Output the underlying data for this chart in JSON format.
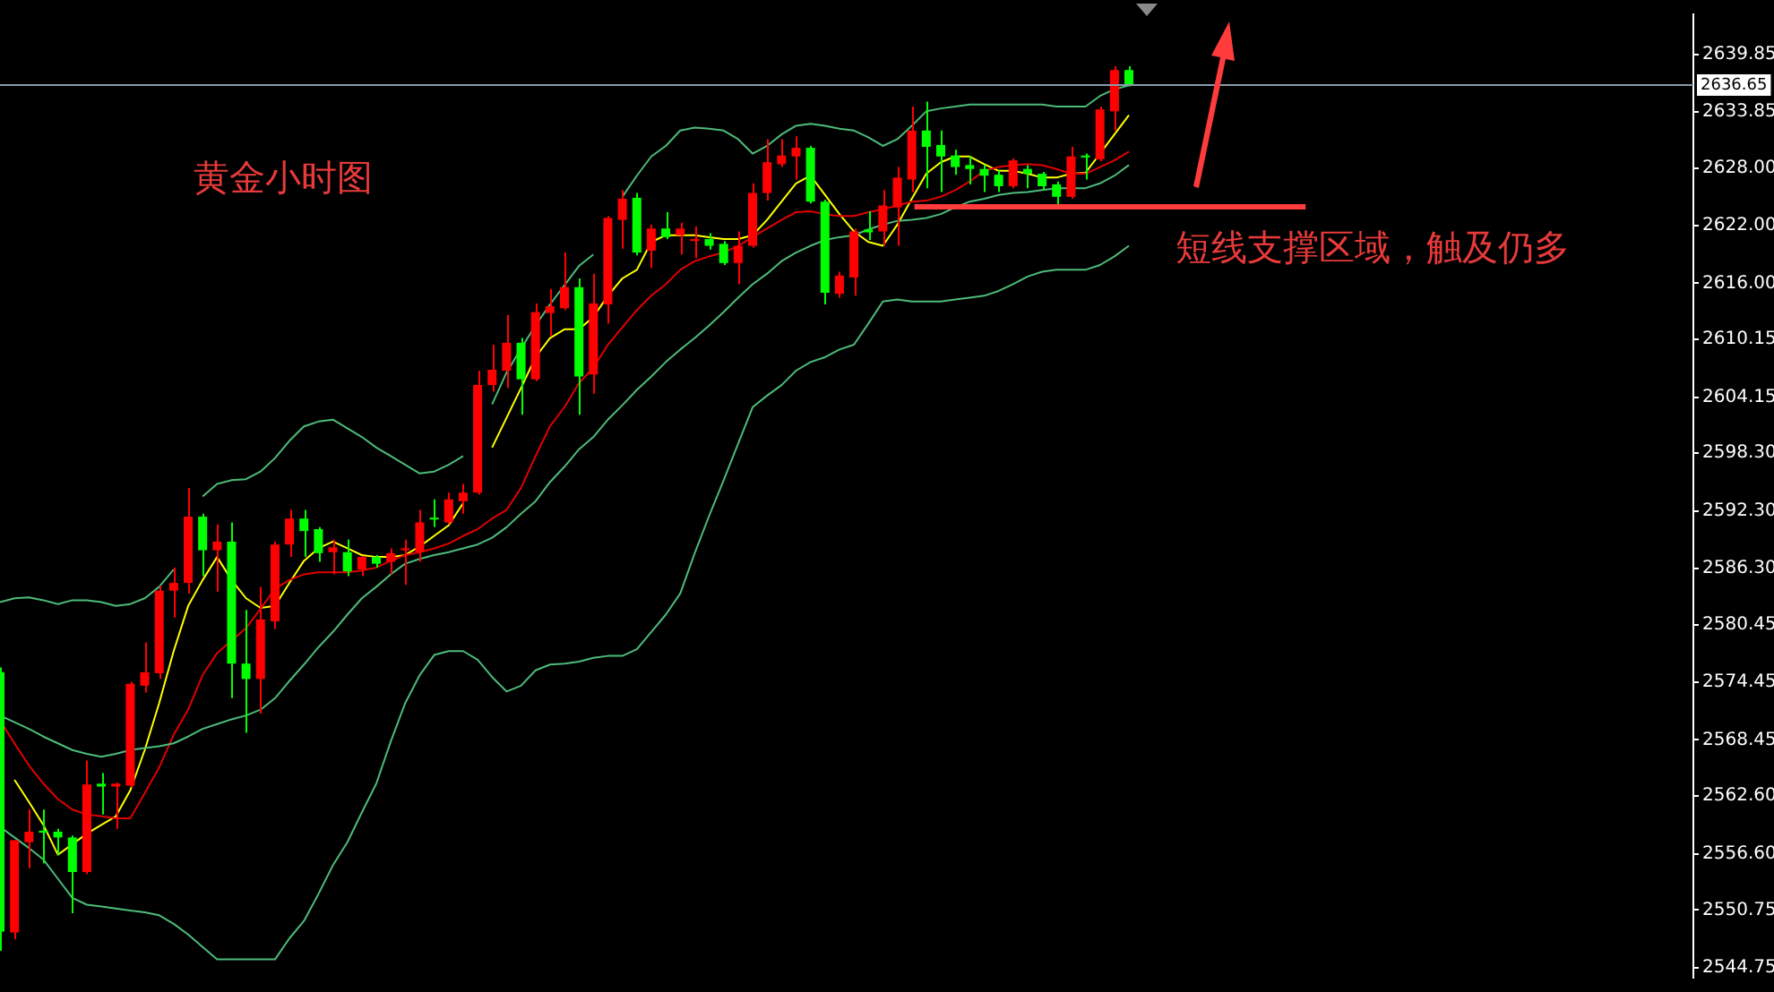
{
  "chart_data": {
    "type": "candlestick",
    "title": "黄金小时图",
    "categories": [
      null,
      null,
      null,
      null,
      null,
      null,
      null,
      null,
      null,
      null,
      null,
      null,
      null,
      null,
      null,
      null,
      null,
      null,
      null,
      null,
      null,
      null,
      null,
      null,
      null,
      null,
      null,
      null,
      null,
      null,
      null,
      null,
      null,
      null,
      null,
      null,
      null,
      null,
      null,
      null,
      null,
      null,
      null,
      null,
      null,
      null,
      null,
      null,
      null,
      null,
      null,
      null,
      null,
      null,
      null,
      null,
      null,
      null,
      null,
      null,
      null,
      null,
      null,
      null,
      null,
      null,
      null,
      null,
      null,
      null,
      null,
      null,
      null,
      null,
      null,
      null,
      null,
      null,
      null,
      null,
      null,
      null,
      null,
      null,
      null,
      null,
      null,
      null,
      null,
      null,
      null,
      null,
      null,
      null,
      null,
      null,
      null,
      null,
      null,
      null,
      null,
      null,
      null,
      null,
      null,
      null,
      null,
      null,
      null,
      null,
      null,
      null,
      null,
      null,
      null,
      null,
      null,
      null
    ],
    "ohlc": [
      [
        2575.5,
        2576.0,
        2546.5,
        2548.5
      ],
      [
        2548.4,
        2558.0,
        2547.7,
        2558.0
      ],
      [
        2557.8,
        2561.2,
        2555.1,
        2558.9
      ],
      [
        2559.0,
        2561.2,
        2555.6,
        2558.8
      ],
      [
        2558.9,
        2559.2,
        2556.5,
        2558.3
      ],
      [
        2558.3,
        2558.5,
        2550.4,
        2554.7
      ],
      [
        2554.7,
        2566.3,
        2554.5,
        2563.8
      ],
      [
        2563.9,
        2565.0,
        2560.7,
        2563.6
      ],
      [
        2563.6,
        2564.0,
        2559.2,
        2563.9
      ],
      [
        2563.7,
        2574.5,
        2563.5,
        2574.3
      ],
      [
        2574.1,
        2578.6,
        2573.4,
        2575.5
      ],
      [
        2575.4,
        2584.5,
        2574.8,
        2584.0
      ],
      [
        2584.0,
        2586.4,
        2581.2,
        2584.8
      ],
      [
        2584.8,
        2594.7,
        2583.7,
        2591.7
      ],
      [
        2591.7,
        2592.0,
        2585.5,
        2588.2
      ],
      [
        2588.2,
        2590.9,
        2583.9,
        2589.1
      ],
      [
        2589.1,
        2591.1,
        2572.8,
        2576.4
      ],
      [
        2576.4,
        2582.0,
        2569.2,
        2574.8
      ],
      [
        2574.8,
        2584.4,
        2571.2,
        2581.0
      ],
      [
        2580.8,
        2589.1,
        2580.0,
        2588.8
      ],
      [
        2588.8,
        2592.4,
        2587.5,
        2591.5
      ],
      [
        2591.5,
        2592.4,
        2587.5,
        2590.2
      ],
      [
        2590.4,
        2590.6,
        2587.0,
        2587.9
      ],
      [
        2588.0,
        2589.3,
        2585.7,
        2588.5
      ],
      [
        2588.0,
        2589.3,
        2585.5,
        2586.0
      ],
      [
        2586.2,
        2587.6,
        2585.5,
        2587.5
      ],
      [
        2587.5,
        2587.7,
        2586.4,
        2586.8
      ],
      [
        2587.0,
        2588.4,
        2585.7,
        2587.9
      ],
      [
        2588.2,
        2589.3,
        2584.6,
        2588.4
      ],
      [
        2588.0,
        2592.4,
        2587.0,
        2591.1
      ],
      [
        2591.6,
        2593.5,
        2590.6,
        2591.4
      ],
      [
        2591.1,
        2594.2,
        2590.9,
        2593.5
      ],
      [
        2593.3,
        2595.1,
        2592.0,
        2594.2
      ],
      [
        2594.2,
        2606.9,
        2594.0,
        2605.4
      ],
      [
        2605.4,
        2609.6,
        2604.7,
        2607.0
      ],
      [
        2606.9,
        2612.7,
        2605.1,
        2609.8
      ],
      [
        2609.8,
        2610.3,
        2602.3,
        2606.0
      ],
      [
        2606.0,
        2613.9,
        2605.8,
        2613.0
      ],
      [
        2612.9,
        2615.4,
        2610.5,
        2613.6
      ],
      [
        2613.4,
        2619.2,
        2613.2,
        2615.6
      ],
      [
        2615.6,
        2616.5,
        2602.3,
        2606.3
      ],
      [
        2606.5,
        2617.0,
        2604.5,
        2613.9
      ],
      [
        2613.8,
        2623.0,
        2611.8,
        2622.8
      ],
      [
        2622.6,
        2625.7,
        2619.6,
        2624.8
      ],
      [
        2624.9,
        2625.4,
        2618.9,
        2619.2
      ],
      [
        2619.4,
        2622.1,
        2617.6,
        2621.7
      ],
      [
        2621.7,
        2623.4,
        2620.6,
        2620.8
      ],
      [
        2621.0,
        2622.3,
        2619.0,
        2621.7
      ],
      [
        2620.4,
        2621.9,
        2618.6,
        2620.6
      ],
      [
        2620.6,
        2621.2,
        2619.5,
        2619.9
      ],
      [
        2620.1,
        2620.4,
        2617.9,
        2618.1
      ],
      [
        2618.1,
        2621.4,
        2615.9,
        2619.9
      ],
      [
        2619.9,
        2626.4,
        2619.7,
        2625.4
      ],
      [
        2625.4,
        2631.0,
        2624.6,
        2628.6
      ],
      [
        2628.4,
        2631.0,
        2628.1,
        2629.3
      ],
      [
        2629.2,
        2631.3,
        2626.8,
        2630.1
      ],
      [
        2630.1,
        2630.3,
        2624.3,
        2624.5
      ],
      [
        2624.5,
        2624.7,
        2613.8,
        2615.0
      ],
      [
        2614.9,
        2617.2,
        2614.5,
        2616.8
      ],
      [
        2616.6,
        2621.7,
        2614.7,
        2621.4
      ],
      [
        2621.6,
        2623.5,
        2620.5,
        2621.3
      ],
      [
        2621.4,
        2625.7,
        2619.9,
        2624.1
      ],
      [
        2623.9,
        2628.1,
        2619.9,
        2627.0
      ],
      [
        2626.8,
        2634.4,
        2625.5,
        2631.9
      ],
      [
        2631.9,
        2634.9,
        2625.9,
        2630.2
      ],
      [
        2630.4,
        2631.9,
        2625.5,
        2629.2
      ],
      [
        2629.3,
        2629.9,
        2627.3,
        2628.1
      ],
      [
        2628.3,
        2629.2,
        2626.3,
        2627.9
      ],
      [
        2627.9,
        2628.3,
        2625.5,
        2627.2
      ],
      [
        2627.3,
        2627.7,
        2625.5,
        2626.1
      ],
      [
        2626.1,
        2629.0,
        2625.9,
        2628.8
      ],
      [
        2627.9,
        2628.3,
        2625.9,
        2627.4
      ],
      [
        2627.4,
        2627.6,
        2625.7,
        2626.1
      ],
      [
        2626.3,
        2626.6,
        2624.1,
        2625.0
      ],
      [
        2625.0,
        2630.2,
        2624.8,
        2629.2
      ],
      [
        2629.3,
        2629.5,
        2626.8,
        2629.1
      ],
      [
        2628.9,
        2634.4,
        2628.7,
        2634.1
      ],
      [
        2633.9,
        2638.6,
        2631.9,
        2638.2
      ],
      [
        2638.2,
        2638.6,
        2636.5,
        2636.6
      ],
      null,
      null,
      null,
      null,
      null,
      null,
      null,
      null,
      null,
      null,
      null,
      null,
      null,
      null,
      null,
      null,
      null,
      null,
      null,
      null,
      null,
      null,
      null,
      null,
      null,
      null,
      null,
      null,
      null,
      null,
      null,
      null,
      null,
      null,
      null,
      null,
      null,
      null,
      null
    ],
    "colors": [
      "#00ff00",
      "#ff0000",
      "#ff0000",
      "#00ff00",
      "#00ff00",
      "#00ff00",
      "#ff0000",
      "#00ff00",
      "#ff0000",
      "#ff0000",
      "#ff0000",
      "#ff0000",
      "#ff0000",
      "#ff0000",
      "#00ff00",
      "#ff0000",
      "#00ff00",
      "#00ff00",
      "#ff0000",
      "#ff0000",
      "#ff0000",
      "#00ff00",
      "#00ff00",
      "#ff0000",
      "#00ff00",
      "#ff0000",
      "#00ff00",
      "#ff0000",
      "#ff0000",
      "#ff0000",
      "#00ff00",
      "#ff0000",
      "#ff0000",
      "#ff0000",
      "#ff0000",
      "#ff0000",
      "#00ff00",
      "#ff0000",
      "#ff0000",
      "#ff0000",
      "#00ff00",
      "#ff0000",
      "#ff0000",
      "#ff0000",
      "#00ff00",
      "#ff0000",
      "#00ff00",
      "#ff0000",
      "#ff0000",
      "#00ff00",
      "#00ff00",
      "#ff0000",
      "#ff0000",
      "#ff0000",
      "#ff0000",
      "#ff0000",
      "#00ff00",
      "#00ff00",
      "#ff0000",
      "#ff0000",
      "#00ff00",
      "#ff0000",
      "#ff0000",
      "#ff0000",
      "#00ff00",
      "#00ff00",
      "#00ff00",
      "#00ff00",
      "#00ff00",
      "#00ff00",
      "#ff0000",
      "#00ff00",
      "#00ff00",
      "#00ff00",
      "#ff0000",
      "#00ff00",
      "#ff0000",
      "#ff0000",
      "#00ff00",
      null,
      null,
      null,
      null,
      null,
      null,
      null,
      null,
      null,
      null,
      null,
      null,
      null,
      null,
      null,
      null,
      null,
      null,
      null,
      null,
      null,
      null,
      null,
      null,
      null,
      null,
      null,
      null,
      null,
      null,
      null,
      null,
      null,
      null,
      null,
      null,
      null,
      null,
      null
    ],
    "series": [
      {
        "type": "line",
        "color": "#4dbb7a",
        "values": [
          2582.8,
          2583.2,
          2583.3,
          2583.0,
          2582.6,
          2583.0,
          2583.0,
          2582.8,
          2582.4,
          2582.6,
          2583.2,
          2584.4,
          2586.2,
          null,
          2593.8,
          2595.1,
          2595.5,
          2595.6,
          2596.4,
          2597.8,
          2599.6,
          2601.1,
          2601.6,
          2601.8,
          2600.9,
          2600.0,
          2598.9,
          2598.0,
          2597.1,
          2596.2,
          2596.4,
          2597.1,
          2598.0,
          null,
          2603.4,
          2606.7,
          2609.2,
          2611.6,
          2613.8,
          2615.8,
          2617.8,
          2619.0,
          null,
          2625.0,
          2627.2,
          2629.2,
          2630.3,
          2631.9,
          2632.2,
          2632.1,
          2631.9,
          2631.0,
          2629.5,
          2630.3,
          2631.5,
          2632.4,
          2632.6,
          2632.4,
          2632.1,
          2631.9,
          2631.2,
          2630.3,
          2631.0,
          2632.4,
          2633.9,
          2634.2,
          2634.4,
          2634.6,
          2634.6,
          2634.6,
          2634.6,
          2634.6,
          2634.6,
          2634.4,
          2634.4,
          2634.4,
          2635.5,
          2636.2,
          2636.6,
          null,
          null,
          null,
          null,
          null,
          null,
          null,
          null,
          null,
          null,
          null,
          null,
          null,
          null,
          null,
          null,
          null,
          null,
          null,
          null,
          null,
          null,
          null,
          null,
          null,
          null,
          null,
          null,
          null,
          null,
          null,
          null,
          null,
          null,
          null,
          null,
          null,
          null,
          null
        ]
      },
      {
        "type": "line",
        "color": "#4dbb7a",
        "values": [
          2571.0,
          2570.3,
          2569.6,
          2568.8,
          2568.1,
          2567.4,
          2567.0,
          2566.7,
          2567.0,
          2567.4,
          2567.6,
          2567.8,
          2568.1,
          2568.8,
          2569.6,
          2570.1,
          2570.6,
          2571.0,
          2571.6,
          2572.8,
          2574.6,
          2576.3,
          2578.1,
          2579.7,
          2581.5,
          2583.2,
          2584.4,
          2585.7,
          2586.8,
          2587.3,
          2587.7,
          2588.0,
          2588.4,
          2588.8,
          2589.5,
          2590.6,
          2592.0,
          2593.3,
          2595.3,
          2596.9,
          2598.7,
          2600.0,
          2601.8,
          2603.3,
          2604.9,
          2606.3,
          2607.8,
          2609.1,
          2610.3,
          2611.6,
          2613.0,
          2614.5,
          2615.9,
          2617.0,
          2618.3,
          2619.2,
          2619.9,
          2620.5,
          2620.8,
          2621.0,
          2621.6,
          2622.1,
          2622.5,
          2622.6,
          2622.8,
          2623.2,
          2623.9,
          2624.5,
          2624.8,
          2625.2,
          2625.4,
          2625.5,
          2625.7,
          2625.9,
          2625.9,
          2625.9,
          2626.4,
          2627.2,
          2628.3,
          null,
          null,
          null,
          null,
          null,
          null,
          null,
          null,
          null,
          null,
          null,
          null,
          null,
          null,
          null,
          null,
          null,
          null,
          null,
          null,
          null,
          null,
          null,
          null,
          null,
          null,
          null,
          null,
          null,
          null,
          null,
          null,
          null,
          null,
          null,
          null,
          null,
          null,
          null
        ]
      },
      {
        "type": "line",
        "color": "#4dbb7a",
        "values": [
          2559.4,
          2558.3,
          2557.2,
          2556.0,
          2554.0,
          2552.0,
          2551.3,
          2551.1,
          2550.9,
          2550.7,
          2550.5,
          2550.2,
          2549.3,
          2548.2,
          2546.9,
          2545.6,
          2545.6,
          2545.6,
          2545.6,
          2545.6,
          2547.8,
          2549.6,
          2552.4,
          2555.4,
          2557.8,
          2560.9,
          2563.9,
          2568.3,
          2572.3,
          2575.2,
          2577.3,
          2577.7,
          2577.7,
          2576.8,
          2575.0,
          2573.5,
          2574.1,
          2575.7,
          2576.3,
          2576.4,
          2576.6,
          2577.0,
          2577.2,
          2577.2,
          2577.9,
          2579.7,
          2581.5,
          2583.7,
          2587.9,
          2591.8,
          2595.5,
          2599.3,
          2603.1,
          2604.3,
          2605.4,
          2606.9,
          2607.8,
          2608.3,
          2609.1,
          2609.6,
          2611.8,
          2614.1,
          2614.3,
          2614.1,
          2614.1,
          2614.1,
          2614.3,
          2614.5,
          2614.7,
          2615.2,
          2615.9,
          2616.7,
          2617.2,
          2617.4,
          2617.4,
          2617.4,
          2617.9,
          2618.8,
          2619.9,
          null,
          null,
          null,
          null,
          null,
          null,
          null,
          null,
          null,
          null,
          null,
          null,
          null,
          null,
          null,
          null,
          null,
          null,
          null,
          null,
          null,
          null,
          null,
          null,
          null,
          null,
          null,
          null,
          null,
          null,
          null,
          null,
          null,
          null,
          null,
          null,
          null,
          null,
          null
        ]
      },
      {
        "type": "line",
        "color": "#e00000",
        "values": [
          2570.5,
          2568.1,
          2565.8,
          2563.9,
          2562.3,
          2561.2,
          2560.7,
          2560.5,
          2560.3,
          2560.3,
          2562.9,
          2565.6,
          2569.0,
          2571.6,
          2575.2,
          2577.5,
          2578.8,
          2580.1,
          2582.1,
          2584.2,
          2585.1,
          2585.7,
          2585.9,
          2585.9,
          2585.9,
          2586.1,
          2586.4,
          2587.1,
          2587.7,
          2588.0,
          2588.4,
          2588.9,
          2589.7,
          2590.4,
          2591.5,
          2592.4,
          2594.7,
          2598.0,
          2601.1,
          2603.1,
          2605.6,
          2607.2,
          2609.6,
          2611.4,
          2613.2,
          2614.7,
          2615.9,
          2617.4,
          2618.3,
          2618.8,
          2619.2,
          2619.9,
          2620.8,
          2621.7,
          2622.6,
          2623.4,
          2623.5,
          2623.2,
          2623.0,
          2623.0,
          2623.4,
          2623.7,
          2624.1,
          2624.5,
          2624.6,
          2625.0,
          2625.7,
          2626.6,
          2627.7,
          2628.1,
          2628.3,
          2628.4,
          2628.3,
          2627.9,
          2627.4,
          2627.4,
          2628.1,
          2628.8,
          2629.7,
          null,
          null,
          null,
          null,
          null,
          null,
          null,
          null,
          null,
          null,
          null,
          null,
          null,
          null,
          null,
          null,
          null,
          null,
          null,
          null,
          null,
          null,
          null,
          null,
          null,
          null,
          null,
          null,
          null,
          null,
          null,
          null,
          null,
          null,
          null,
          null,
          null,
          null,
          null
        ]
      },
      {
        "type": "line",
        "color": "#ffff00",
        "values": [
          null,
          2564.3,
          2562.0,
          2559.6,
          2556.5,
          2557.6,
          2558.7,
          2559.6,
          2560.5,
          2563.2,
          2567.4,
          2572.3,
          2577.7,
          2582.4,
          2585.1,
          2587.5,
          2585.1,
          2583.2,
          2582.2,
          2582.4,
          2584.8,
          2587.1,
          2588.4,
          2589.1,
          2588.4,
          2587.7,
          2587.5,
          2587.5,
          2587.7,
          2588.6,
          2589.7,
          2590.8,
          2593.1,
          null,
          2598.9,
          2602.0,
          2605.1,
          2608.3,
          2610.3,
          2611.2,
          2611.2,
          2612.5,
          2614.7,
          2616.5,
          2617.4,
          2620.3,
          2621.0,
          2621.0,
          2621.0,
          2620.8,
          2620.6,
          2620.6,
          2621.0,
          2622.6,
          2624.5,
          2626.4,
          2627.2,
          2625.2,
          2623.2,
          2621.4,
          2620.3,
          2619.9,
          2622.1,
          2624.8,
          2627.4,
          2628.6,
          2629.2,
          2629.2,
          2628.4,
          2627.7,
          2627.7,
          2627.4,
          2627.0,
          2627.0,
          2627.4,
          2627.5,
          2629.5,
          2631.5,
          2633.5,
          null,
          null,
          null,
          null,
          null,
          null,
          null,
          null,
          null,
          null,
          null,
          null,
          null,
          null,
          null,
          null,
          null,
          null,
          null,
          null,
          null,
          null,
          null,
          null,
          null,
          null,
          null,
          null,
          null,
          null,
          null,
          null,
          null,
          null,
          null,
          null,
          null,
          null,
          null
        ]
      }
    ],
    "ylim": [
      2543.7,
      2644.0
    ],
    "yticks": [
      2639.85,
      {
        "value": 2633.85,
        "label": "2633.85"
      },
      {
        "value": 2628,
        "label": "2628.00"
      },
      {
        "value": 2622,
        "label": "2622.00"
      },
      {
        "value": 2616,
        "label": "2616.00"
      },
      2610.15,
      2604.15,
      {
        "value": 2598.3,
        "label": "2598.30"
      },
      {
        "value": 2592.3,
        "label": "2592.30"
      },
      {
        "value": 2586.3,
        "label": "2586.30"
      },
      2580.45,
      2574.45,
      2568.45,
      {
        "value": 2562.6,
        "label": "2562.60"
      },
      {
        "value": 2556.6,
        "label": "2556.60"
      },
      2550.75,
      2544.75
    ],
    "ref_lines": [
      {
        "axis": "y",
        "value": 2636.65,
        "label": "2636.65",
        "color": "#8a9aa8"
      },
      {
        "axis": "y",
        "value": 2624.1,
        "color": "#ff3b3b"
      }
    ],
    "annotations": [
      "短线支撑区域，触及仍多"
    ],
    "tick_labels": "y",
    "grid": false,
    "legend": false
  }
}
